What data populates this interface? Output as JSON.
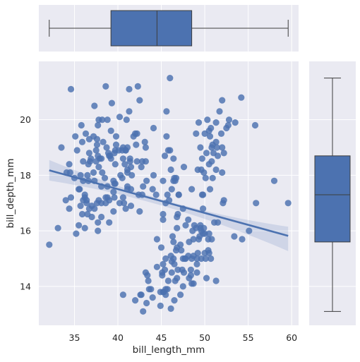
{
  "chart_data": {
    "type": "scatter",
    "subtype": "jointplot with regression line and marginal boxplots",
    "xlabel": "bill_length_mm",
    "ylabel": "bill_depth_mm",
    "xlim": [
      30.9,
      60.8
    ],
    "ylim": [
      12.6,
      22.1
    ],
    "xticks": [
      35,
      40,
      45,
      50,
      55,
      60
    ],
    "yticks": [
      14,
      16,
      18,
      20
    ],
    "grid": true,
    "colors": {
      "points": "#4c72b0",
      "background": "#eaeaf2",
      "grid": "#ffffff",
      "box_edge": "#3d3d3d"
    },
    "regression": {
      "x": [
        32.1,
        59.6
      ],
      "y": [
        18.18,
        15.82
      ],
      "ci_upper": [
        18.55,
        16.15
      ],
      "ci_mid_upper": [
        17.09,
        17.09
      ],
      "ci_mid_lower": [
        16.87,
        16.87
      ],
      "ci_lower": [
        17.81,
        15.27
      ],
      "ci_mid_x": 45.5
    },
    "marginal_x_boxplot": {
      "min": 32.1,
      "q1": 39.2,
      "median": 44.5,
      "q3": 48.5,
      "max": 59.6
    },
    "marginal_y_boxplot": {
      "min": 13.1,
      "q1": 15.6,
      "median": 17.3,
      "q3": 18.7,
      "max": 21.5
    },
    "points": [
      [
        32.1,
        15.5
      ],
      [
        33.1,
        16.1
      ],
      [
        33.5,
        19.0
      ],
      [
        34.0,
        17.1
      ],
      [
        34.1,
        18.1
      ],
      [
        34.4,
        18.4
      ],
      [
        34.5,
        18.1
      ],
      [
        34.6,
        21.1
      ],
      [
        34.6,
        17.2
      ],
      [
        35.0,
        17.9
      ],
      [
        35.1,
        19.4
      ],
      [
        35.2,
        15.9
      ],
      [
        35.3,
        18.9
      ],
      [
        35.5,
        17.5
      ],
      [
        35.5,
        16.2
      ],
      [
        35.6,
        17.5
      ],
      [
        35.7,
        16.9
      ],
      [
        35.7,
        18.0
      ],
      [
        35.8,
        19.8
      ],
      [
        35.9,
        19.2
      ],
      [
        35.9,
        16.6
      ],
      [
        36.0,
        17.8
      ],
      [
        36.0,
        18.5
      ],
      [
        36.0,
        17.1
      ],
      [
        36.2,
        16.1
      ],
      [
        36.2,
        17.3
      ],
      [
        36.2,
        17.2
      ],
      [
        36.3,
        19.5
      ],
      [
        36.4,
        17.0
      ],
      [
        36.4,
        17.1
      ],
      [
        36.5,
        18.0
      ],
      [
        36.5,
        16.6
      ],
      [
        36.6,
        17.8
      ],
      [
        36.6,
        18.4
      ],
      [
        36.7,
        19.3
      ],
      [
        36.7,
        18.8
      ],
      [
        36.8,
        18.5
      ],
      [
        36.9,
        18.6
      ],
      [
        37.0,
        16.9
      ],
      [
        37.0,
        16.5
      ],
      [
        37.2,
        18.1
      ],
      [
        37.2,
        19.4
      ],
      [
        37.3,
        20.5
      ],
      [
        37.3,
        17.8
      ],
      [
        37.3,
        16.8
      ],
      [
        37.5,
        18.9
      ],
      [
        37.5,
        18.5
      ],
      [
        37.6,
        19.3
      ],
      [
        37.6,
        17.0
      ],
      [
        37.6,
        19.1
      ],
      [
        37.7,
        18.7
      ],
      [
        37.7,
        16.0
      ],
      [
        37.7,
        19.8
      ],
      [
        37.8,
        18.3
      ],
      [
        37.8,
        17.1
      ],
      [
        37.8,
        20.0
      ],
      [
        37.9,
        18.6
      ],
      [
        38.1,
        18.6
      ],
      [
        38.1,
        17.0
      ],
      [
        38.1,
        16.5
      ],
      [
        38.1,
        17.6
      ],
      [
        38.2,
        18.1
      ],
      [
        38.2,
        20.0
      ],
      [
        38.3,
        19.2
      ],
      [
        38.5,
        17.9
      ],
      [
        38.6,
        21.2
      ],
      [
        38.6,
        17.2
      ],
      [
        38.6,
        17.0
      ],
      [
        38.7,
        19.0
      ],
      [
        38.8,
        17.2
      ],
      [
        38.8,
        20.0
      ],
      [
        38.8,
        17.6
      ],
      [
        38.9,
        18.8
      ],
      [
        39.0,
        17.1
      ],
      [
        39.0,
        18.7
      ],
      [
        39.1,
        18.7
      ],
      [
        39.2,
        19.6
      ],
      [
        39.2,
        18.6
      ],
      [
        39.3,
        20.6
      ],
      [
        39.5,
        17.4
      ],
      [
        39.5,
        16.7
      ],
      [
        39.5,
        17.8
      ],
      [
        39.6,
        18.8
      ],
      [
        39.6,
        17.7
      ],
      [
        39.6,
        17.2
      ],
      [
        39.7,
        18.4
      ],
      [
        39.7,
        17.7
      ],
      [
        39.7,
        18.9
      ],
      [
        39.8,
        19.1
      ],
      [
        39.8,
        19.4
      ],
      [
        40.1,
        18.9
      ],
      [
        40.2,
        20.1
      ],
      [
        40.2,
        17.0
      ],
      [
        40.3,
        18.0
      ],
      [
        40.5,
        18.9
      ],
      [
        40.5,
        17.9
      ],
      [
        40.6,
        18.6
      ],
      [
        40.6,
        17.2
      ],
      [
        40.7,
        17.0
      ],
      [
        40.8,
        18.4
      ],
      [
        40.9,
        18.9
      ],
      [
        40.9,
        16.8
      ],
      [
        41.0,
        20.0
      ],
      [
        41.1,
        17.6
      ],
      [
        41.1,
        18.2
      ],
      [
        41.1,
        19.0
      ],
      [
        41.1,
        18.1
      ],
      [
        41.1,
        17.5
      ],
      [
        41.3,
        20.3
      ],
      [
        41.3,
        21.1
      ],
      [
        41.4,
        18.6
      ],
      [
        41.4,
        18.5
      ],
      [
        41.5,
        17.5
      ],
      [
        41.5,
        18.3
      ],
      [
        41.6,
        18.0
      ],
      [
        41.8,
        19.4
      ],
      [
        42.0,
        19.5
      ],
      [
        42.1,
        19.1
      ],
      [
        42.2,
        18.5
      ],
      [
        42.2,
        19.5
      ],
      [
        42.3,
        21.2
      ],
      [
        42.5,
        20.7
      ],
      [
        42.7,
        18.3
      ],
      [
        42.8,
        18.5
      ],
      [
        42.9,
        17.6
      ],
      [
        43.1,
        19.2
      ],
      [
        43.2,
        18.5
      ],
      [
        43.3,
        17.8
      ],
      [
        44.1,
        18.0
      ],
      [
        44.1,
        19.7
      ],
      [
        45.6,
        20.3
      ],
      [
        45.8,
        18.9
      ],
      [
        46.0,
        21.5
      ],
      [
        40.6,
        13.7
      ],
      [
        42.0,
        13.5
      ],
      [
        42.6,
        13.7
      ],
      [
        42.7,
        13.7
      ],
      [
        42.9,
        13.1
      ],
      [
        43.2,
        14.5
      ],
      [
        43.3,
        13.4
      ],
      [
        43.4,
        14.4
      ],
      [
        43.5,
        14.2
      ],
      [
        43.6,
        13.9
      ],
      [
        43.8,
        13.9
      ],
      [
        44.0,
        13.6
      ],
      [
        44.4,
        17.3
      ],
      [
        44.5,
        14.7
      ],
      [
        44.5,
        15.7
      ],
      [
        44.9,
        13.8
      ],
      [
        44.9,
        13.3
      ],
      [
        45.0,
        15.4
      ],
      [
        45.1,
        14.5
      ],
      [
        45.1,
        14.4
      ],
      [
        45.2,
        14.8
      ],
      [
        45.2,
        16.4
      ],
      [
        45.2,
        13.8
      ],
      [
        45.3,
        13.8
      ],
      [
        45.4,
        14.6
      ],
      [
        45.5,
        13.7
      ],
      [
        45.5,
        15.0
      ],
      [
        45.5,
        13.9
      ],
      [
        45.7,
        13.9
      ],
      [
        45.8,
        14.2
      ],
      [
        46.1,
        13.2
      ],
      [
        46.1,
        15.1
      ],
      [
        46.2,
        14.5
      ],
      [
        46.2,
        14.9
      ],
      [
        46.3,
        15.8
      ],
      [
        46.4,
        15.0
      ],
      [
        46.4,
        15.6
      ],
      [
        46.5,
        14.8
      ],
      [
        46.5,
        13.5
      ],
      [
        46.6,
        14.2
      ],
      [
        46.7,
        15.3
      ],
      [
        46.8,
        14.3
      ],
      [
        46.8,
        15.4
      ],
      [
        46.8,
        16.1
      ],
      [
        46.9,
        14.6
      ],
      [
        47.2,
        13.7
      ],
      [
        47.2,
        15.5
      ],
      [
        47.3,
        15.3
      ],
      [
        47.4,
        14.6
      ],
      [
        47.5,
        14.0
      ],
      [
        47.5,
        15.0
      ],
      [
        47.6,
        14.5
      ],
      [
        47.7,
        15.0
      ],
      [
        47.8,
        15.0
      ],
      [
        48.1,
        15.1
      ],
      [
        48.2,
        14.3
      ],
      [
        48.2,
        15.6
      ],
      [
        48.4,
        14.4
      ],
      [
        48.4,
        14.6
      ],
      [
        48.5,
        14.1
      ],
      [
        48.5,
        15.0
      ],
      [
        48.6,
        16.0
      ],
      [
        48.7,
        14.1
      ],
      [
        48.7,
        15.1
      ],
      [
        48.7,
        15.7
      ],
      [
        48.8,
        16.2
      ],
      [
        49.0,
        16.1
      ],
      [
        49.1,
        14.5
      ],
      [
        49.1,
        14.8
      ],
      [
        49.1,
        15.0
      ],
      [
        49.2,
        15.2
      ],
      [
        49.3,
        15.7
      ],
      [
        49.4,
        15.8
      ],
      [
        49.5,
        16.1
      ],
      [
        49.5,
        16.2
      ],
      [
        49.6,
        15.0
      ],
      [
        49.6,
        16.0
      ],
      [
        49.8,
        15.9
      ],
      [
        49.8,
        16.8
      ],
      [
        49.9,
        16.1
      ],
      [
        50.0,
        15.2
      ],
      [
        50.0,
        15.9
      ],
      [
        50.1,
        15.0
      ],
      [
        50.2,
        14.3
      ],
      [
        50.4,
        15.3
      ],
      [
        50.4,
        15.7
      ],
      [
        50.5,
        15.2
      ],
      [
        50.5,
        15.9
      ],
      [
        50.7,
        15.0
      ],
      [
        50.8,
        15.7
      ],
      [
        51.1,
        16.3
      ],
      [
        51.3,
        14.2
      ],
      [
        51.5,
        16.3
      ],
      [
        52.1,
        17.0
      ],
      [
        52.2,
        17.1
      ],
      [
        53.4,
        15.8
      ],
      [
        54.3,
        15.7
      ],
      [
        55.1,
        16.0
      ],
      [
        55.9,
        17.0
      ],
      [
        59.6,
        17.0
      ],
      [
        46.0,
        18.9
      ],
      [
        46.1,
        18.2
      ],
      [
        46.4,
        18.6
      ],
      [
        46.5,
        17.9
      ],
      [
        46.6,
        17.8
      ],
      [
        46.7,
        17.9
      ],
      [
        46.8,
        16.5
      ],
      [
        46.9,
        16.6
      ],
      [
        47.0,
        17.3
      ],
      [
        47.5,
        16.8
      ],
      [
        47.6,
        18.3
      ],
      [
        48.1,
        16.4
      ],
      [
        49.0,
        19.5
      ],
      [
        49.2,
        18.2
      ],
      [
        49.3,
        19.9
      ],
      [
        49.5,
        19.0
      ],
      [
        49.6,
        18.2
      ],
      [
        49.7,
        18.6
      ],
      [
        49.8,
        17.3
      ],
      [
        49.9,
        18.1
      ],
      [
        50.0,
        19.5
      ],
      [
        50.1,
        17.9
      ],
      [
        50.2,
        18.8
      ],
      [
        50.3,
        20.0
      ],
      [
        50.5,
        18.4
      ],
      [
        50.5,
        19.6
      ],
      [
        50.6,
        19.4
      ],
      [
        50.7,
        19.7
      ],
      [
        50.8,
        18.5
      ],
      [
        50.8,
        19.0
      ],
      [
        50.9,
        17.9
      ],
      [
        50.9,
        19.1
      ],
      [
        51.0,
        18.8
      ],
      [
        51.3,
        18.2
      ],
      [
        51.3,
        19.2
      ],
      [
        51.3,
        19.9
      ],
      [
        51.4,
        19.0
      ],
      [
        51.5,
        18.7
      ],
      [
        51.7,
        20.3
      ],
      [
        51.9,
        19.5
      ],
      [
        52.0,
        18.1
      ],
      [
        52.0,
        19.0
      ],
      [
        52.0,
        20.7
      ],
      [
        52.2,
        18.8
      ],
      [
        52.5,
        19.7
      ],
      [
        52.7,
        19.8
      ],
      [
        52.8,
        20.0
      ],
      [
        53.5,
        19.9
      ],
      [
        54.2,
        20.8
      ],
      [
        55.8,
        19.8
      ],
      [
        58.0,
        17.8
      ],
      [
        45.2,
        17.8
      ],
      [
        45.4,
        18.7
      ],
      [
        45.5,
        17.0
      ],
      [
        45.6,
        19.4
      ],
      [
        45.7,
        17.3
      ],
      [
        45.9,
        17.1
      ],
      [
        46.2,
        17.5
      ],
      [
        46.4,
        17.8
      ],
      [
        47.0,
        17.3
      ],
      [
        48.5,
        17.5
      ],
      [
        49.7,
        17.3
      ],
      [
        50.6,
        17.5
      ],
      [
        40.6,
        19.0
      ],
      [
        40.9,
        18.9
      ],
      [
        43.2,
        19.0
      ],
      [
        42.4,
        17.3
      ],
      [
        42.8,
        17.3
      ],
      [
        44.0,
        17.5
      ],
      [
        47.8,
        16.2
      ],
      [
        45.2,
        16.6
      ],
      [
        42.5,
        16.7
      ],
      [
        41.5,
        16.9
      ],
      [
        39.0,
        16.3
      ],
      [
        37.7,
        16.3
      ],
      [
        36.7,
        16.8
      ],
      [
        34.4,
        16.8
      ]
    ]
  }
}
